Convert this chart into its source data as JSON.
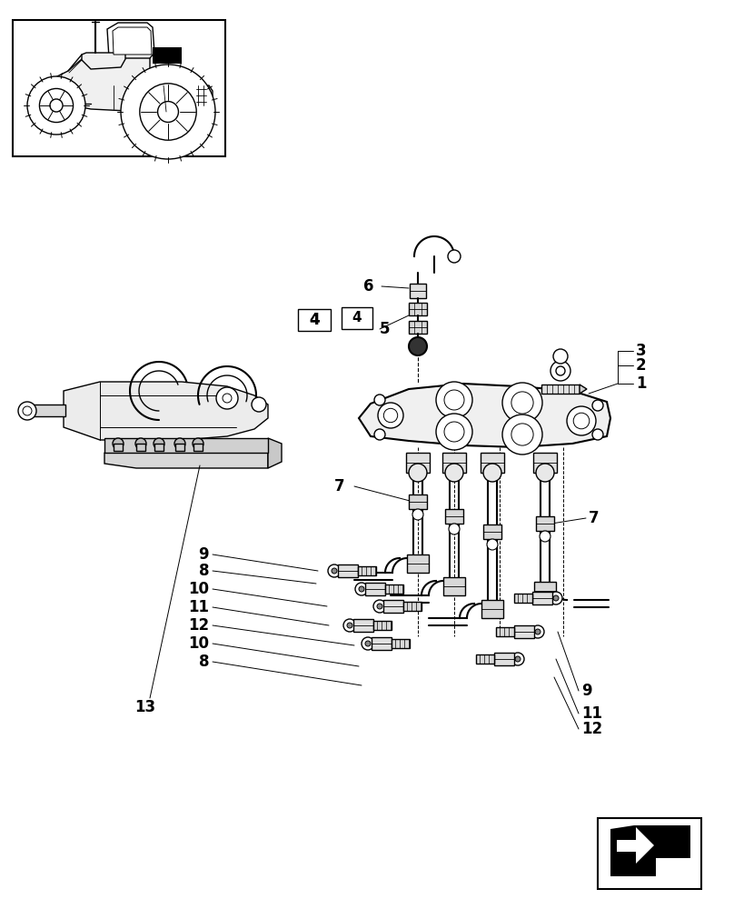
{
  "bg_color": "#ffffff",
  "line_color": "#000000",
  "fig_width": 8.08,
  "fig_height": 10.0,
  "dpi": 100
}
